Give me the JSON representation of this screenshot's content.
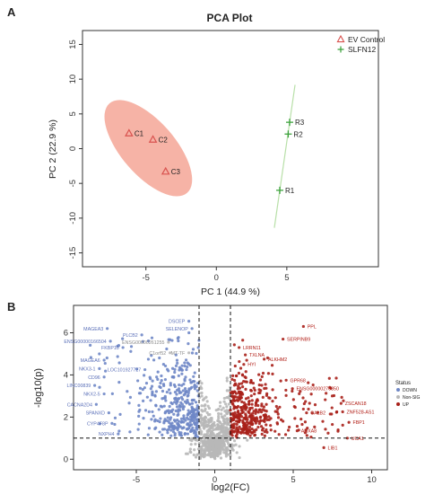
{
  "panels": {
    "a": "A",
    "b": "B"
  },
  "colors": {
    "ev": "#d9534f",
    "slfn": "#3aa03a",
    "ellipse": "#f4a090",
    "ellipse_line": "#b8e0a8",
    "down": "#6f87c6",
    "nonsig": "#b8b8b8",
    "up": "#a8201a",
    "label_down": "#5a6fb8",
    "label_up": "#b01a12"
  },
  "chart_data": [
    {
      "type": "scatter",
      "title": "PCA Plot",
      "xlabel": "PC 1 (44.9 %)",
      "ylabel": "PC 2 (22.9 %)",
      "xlim": [
        -9.5,
        11.5
      ],
      "ylim": [
        -17,
        17
      ],
      "xticks": [
        -5,
        0,
        5
      ],
      "yticks": [
        15,
        10,
        5,
        0,
        -5,
        -10,
        -15
      ],
      "grid": false,
      "legend_position": "top-right",
      "series": [
        {
          "name": "EV Control",
          "marker": "triangle",
          "points": [
            {
              "label": "C1",
              "x": -6.2,
              "y": 2.2
            },
            {
              "label": "C2",
              "x": -4.5,
              "y": 1.3
            },
            {
              "label": "C3",
              "x": -3.6,
              "y": -3.3
            }
          ]
        },
        {
          "name": "SLFN12",
          "marker": "plus",
          "points": [
            {
              "label": "R3",
              "x": 5.2,
              "y": 3.8
            },
            {
              "label": "R2",
              "x": 5.1,
              "y": 2.1
            },
            {
              "label": "R1",
              "x": 4.5,
              "y": -6.0
            }
          ]
        }
      ]
    },
    {
      "type": "scatter",
      "title": "",
      "xlabel": "log2(FC)",
      "ylabel": "-log10(p)",
      "xlim": [
        -9,
        11
      ],
      "ylim": [
        -0.5,
        7.3
      ],
      "xticks": [
        -5,
        0,
        5,
        10
      ],
      "yticks": [
        0,
        2,
        4,
        6
      ],
      "thresholds": {
        "fc": [
          -1,
          1
        ],
        "p": 1
      },
      "legend": {
        "title": "Status",
        "items": [
          "DOWN",
          "Non-SIG",
          "UP"
        ]
      },
      "labels": [
        {
          "text": "MAGEA3",
          "x": -7.1,
          "y": 6.2,
          "status": "down"
        },
        {
          "text": "PLCB2",
          "x": -4.9,
          "y": 5.9,
          "status": "down"
        },
        {
          "text": "ENSG00000166504",
          "x": -6.9,
          "y": 5.6,
          "status": "down"
        },
        {
          "text": "FKBP10",
          "x": -6.1,
          "y": 5.3,
          "status": "down"
        },
        {
          "text": "MAGEA6",
          "x": -7.3,
          "y": 4.7,
          "status": "down"
        },
        {
          "text": "NKX3-1",
          "x": -7.6,
          "y": 4.3,
          "status": "down"
        },
        {
          "text": "LOC101927727",
          "x": -4.7,
          "y": 4.25,
          "status": "down"
        },
        {
          "text": "CD96",
          "x": -7.3,
          "y": 3.9,
          "status": "down"
        },
        {
          "text": "LINC00839",
          "x": -7.9,
          "y": 3.5,
          "status": "down"
        },
        {
          "text": "NKX2-5",
          "x": -7.3,
          "y": 3.1,
          "status": "down"
        },
        {
          "text": "CACNA2D4",
          "x": -7.8,
          "y": 2.6,
          "status": "down"
        },
        {
          "text": "SPANXD",
          "x": -7.0,
          "y": 2.2,
          "status": "down"
        },
        {
          "text": "CYP4F8P",
          "x": -6.8,
          "y": 1.7,
          "status": "down"
        },
        {
          "text": "NXPH4",
          "x": -6.4,
          "y": 1.2,
          "status": "down"
        },
        {
          "text": "DSCEP",
          "x": -1.9,
          "y": 6.55,
          "status": "down"
        },
        {
          "text": "SELENOP",
          "x": -1.7,
          "y": 6.2,
          "status": "down"
        },
        {
          "text": "ENSG00000261255",
          "x": -3.2,
          "y": 5.55,
          "status": "nonsig"
        },
        {
          "text": "C1orf52",
          "x": -3.1,
          "y": 5.05,
          "status": "nonsig"
        },
        {
          "text": "MT-TF",
          "x": -1.9,
          "y": 5.05,
          "status": "nonsig"
        },
        {
          "text": "PPL",
          "x": 5.9,
          "y": 6.3,
          "status": "up"
        },
        {
          "text": "SERPINB9",
          "x": 4.6,
          "y": 5.7,
          "status": "up"
        },
        {
          "text": "LRRN11",
          "x": 1.8,
          "y": 5.3,
          "status": "up"
        },
        {
          "text": "TXLNA",
          "x": 2.2,
          "y": 4.95,
          "status": "up"
        },
        {
          "text": "ALKHM2",
          "x": 3.4,
          "y": 4.75,
          "status": "up"
        },
        {
          "text": "HYI",
          "x": 2.1,
          "y": 4.5,
          "status": "up"
        },
        {
          "text": "GPR68",
          "x": 4.8,
          "y": 3.75,
          "status": "up"
        },
        {
          "text": "ENSG00000276850",
          "x": 5.2,
          "y": 3.35,
          "status": "up"
        },
        {
          "text": "ZSCAN18",
          "x": 8.3,
          "y": 2.65,
          "status": "up"
        },
        {
          "text": "ZNF528-AS1",
          "x": 8.4,
          "y": 2.25,
          "status": "up"
        },
        {
          "text": "CALB2",
          "x": 6.1,
          "y": 2.2,
          "status": "up"
        },
        {
          "text": "FBP1",
          "x": 8.8,
          "y": 1.75,
          "status": "up"
        },
        {
          "text": "ANXA8",
          "x": 5.5,
          "y": 1.35,
          "status": "up"
        },
        {
          "text": "UCA1",
          "x": 8.7,
          "y": 1.0,
          "status": "up"
        },
        {
          "text": "LIB1",
          "x": 7.2,
          "y": 0.55,
          "status": "up"
        }
      ]
    }
  ]
}
